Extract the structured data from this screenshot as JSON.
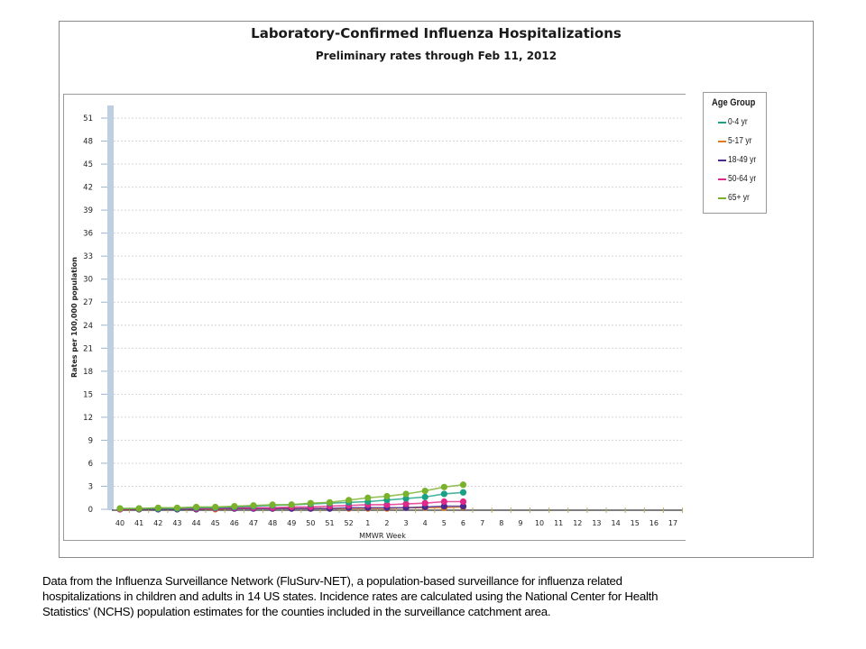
{
  "chart": {
    "title": "Laboratory-Confirmed Influenza Hospitalizations",
    "subtitle": "Preliminary rates through Feb 11, 2012",
    "ylabel": "Rates per 100,000 population",
    "xlabel": "MMWR Week"
  },
  "legend": {
    "title": "Age Group",
    "items": [
      {
        "label": "0-4 yr",
        "color": "#1aa085"
      },
      {
        "label": "5-17 yr",
        "color": "#e07b1c"
      },
      {
        "label": "18-49 yr",
        "color": "#4b2a8f"
      },
      {
        "label": "50-64 yr",
        "color": "#e0288a"
      },
      {
        "label": "65+ yr",
        "color": "#7ab22c"
      }
    ]
  },
  "footnote": {
    "line1": "Data from the Influenza Surveillance Network (FluSurv-NET),  a population-based surveillance for influenza related",
    "line2": "hospitalizations in children and adults in 14 US states.  Incidence rates are calculated using the National Center for Health",
    "line3": "Statistics' (NCHS) population estimates for the counties included in the surveillance catchment area."
  },
  "chart_data": {
    "type": "line",
    "title": "Laboratory-Confirmed Influenza Hospitalizations",
    "subtitle": "Preliminary rates through Feb 11, 2012",
    "xlabel": "MMWR Week",
    "ylabel": "Rates per 100,000 population",
    "ylim": [
      0,
      52
    ],
    "yticks": [
      0,
      3,
      6,
      9,
      12,
      15,
      18,
      21,
      24,
      27,
      30,
      33,
      36,
      39,
      42,
      45,
      48,
      51
    ],
    "grid": true,
    "legend_position": "right",
    "legend_title": "Age Group",
    "categories": [
      "40",
      "41",
      "42",
      "43",
      "44",
      "45",
      "46",
      "47",
      "48",
      "49",
      "50",
      "51",
      "52",
      "1",
      "2",
      "3",
      "4",
      "5",
      "6",
      "7",
      "8",
      "9",
      "10",
      "11",
      "12",
      "13",
      "14",
      "15",
      "16",
      "17"
    ],
    "series": [
      {
        "name": "0-4 yr",
        "color": "#1aa085",
        "values": [
          0.1,
          0.1,
          0.1,
          0.1,
          0.2,
          0.2,
          0.3,
          0.4,
          0.5,
          0.6,
          0.7,
          0.8,
          0.9,
          1.0,
          1.2,
          1.4,
          1.6,
          2.0,
          2.2,
          null,
          null,
          null,
          null,
          null,
          null,
          null,
          null,
          null,
          null,
          null
        ]
      },
      {
        "name": "5-17 yr",
        "color": "#e07b1c",
        "values": [
          0.0,
          0.0,
          0.0,
          0.0,
          0.0,
          0.0,
          0.1,
          0.1,
          0.1,
          0.1,
          0.1,
          0.1,
          0.1,
          0.1,
          0.1,
          0.2,
          0.2,
          0.2,
          0.3,
          null,
          null,
          null,
          null,
          null,
          null,
          null,
          null,
          null,
          null,
          null
        ]
      },
      {
        "name": "18-49 yr",
        "color": "#4b2a8f",
        "values": [
          0.0,
          0.0,
          0.0,
          0.0,
          0.0,
          0.1,
          0.1,
          0.1,
          0.1,
          0.1,
          0.1,
          0.1,
          0.2,
          0.2,
          0.2,
          0.2,
          0.3,
          0.4,
          0.4,
          null,
          null,
          null,
          null,
          null,
          null,
          null,
          null,
          null,
          null,
          null
        ]
      },
      {
        "name": "50-64 yr",
        "color": "#e0288a",
        "values": [
          0.0,
          0.1,
          0.1,
          0.1,
          0.1,
          0.1,
          0.2,
          0.2,
          0.2,
          0.3,
          0.3,
          0.4,
          0.5,
          0.6,
          0.6,
          0.7,
          0.8,
          1.0,
          1.0,
          null,
          null,
          null,
          null,
          null,
          null,
          null,
          null,
          null,
          null,
          null
        ]
      },
      {
        "name": "65+ yr",
        "color": "#7ab22c",
        "values": [
          0.1,
          0.1,
          0.2,
          0.2,
          0.3,
          0.3,
          0.4,
          0.5,
          0.6,
          0.6,
          0.8,
          0.9,
          1.2,
          1.5,
          1.7,
          2.0,
          2.4,
          2.9,
          3.2,
          null,
          null,
          null,
          null,
          null,
          null,
          null,
          null,
          null,
          null,
          null
        ]
      }
    ]
  }
}
